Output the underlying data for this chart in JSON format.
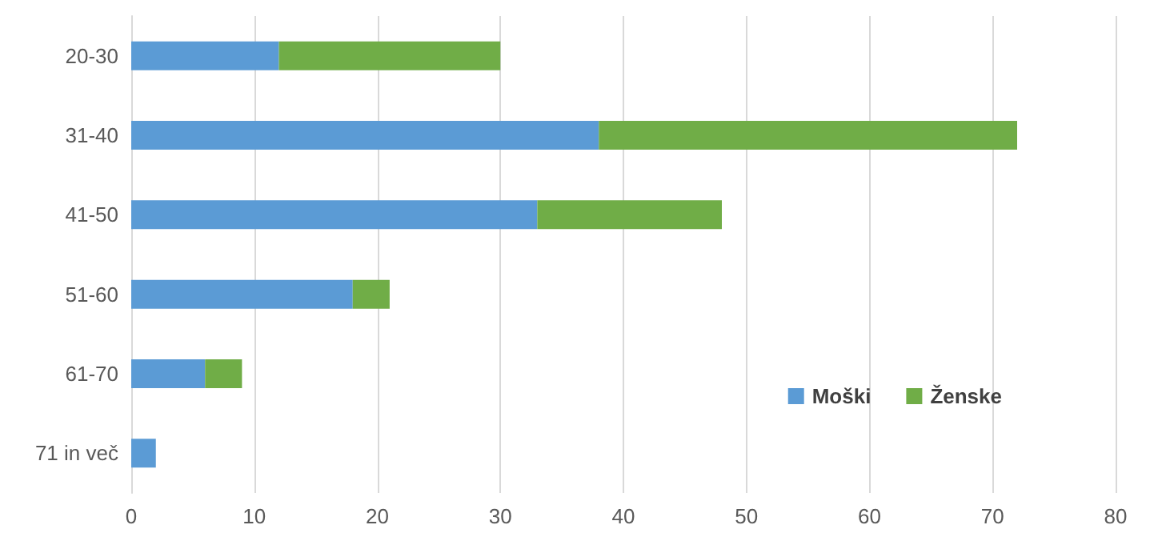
{
  "chart_data": {
    "type": "bar",
    "orientation": "horizontal",
    "stacked": true,
    "categories": [
      "20-30",
      "31-40",
      "41-50",
      "51-60",
      "61-70",
      "71 in več"
    ],
    "series": [
      {
        "name": "Moški",
        "color": "#5b9bd5",
        "values": [
          12,
          38,
          33,
          18,
          6,
          2
        ]
      },
      {
        "name": "Ženske",
        "color": "#70ad47",
        "values": [
          18,
          34,
          15,
          3,
          3,
          0
        ]
      }
    ],
    "xlim": [
      0,
      80
    ],
    "xticks": [
      0,
      10,
      20,
      30,
      40,
      50,
      60,
      70,
      80
    ],
    "grid": "x",
    "legend": "bottom right"
  }
}
